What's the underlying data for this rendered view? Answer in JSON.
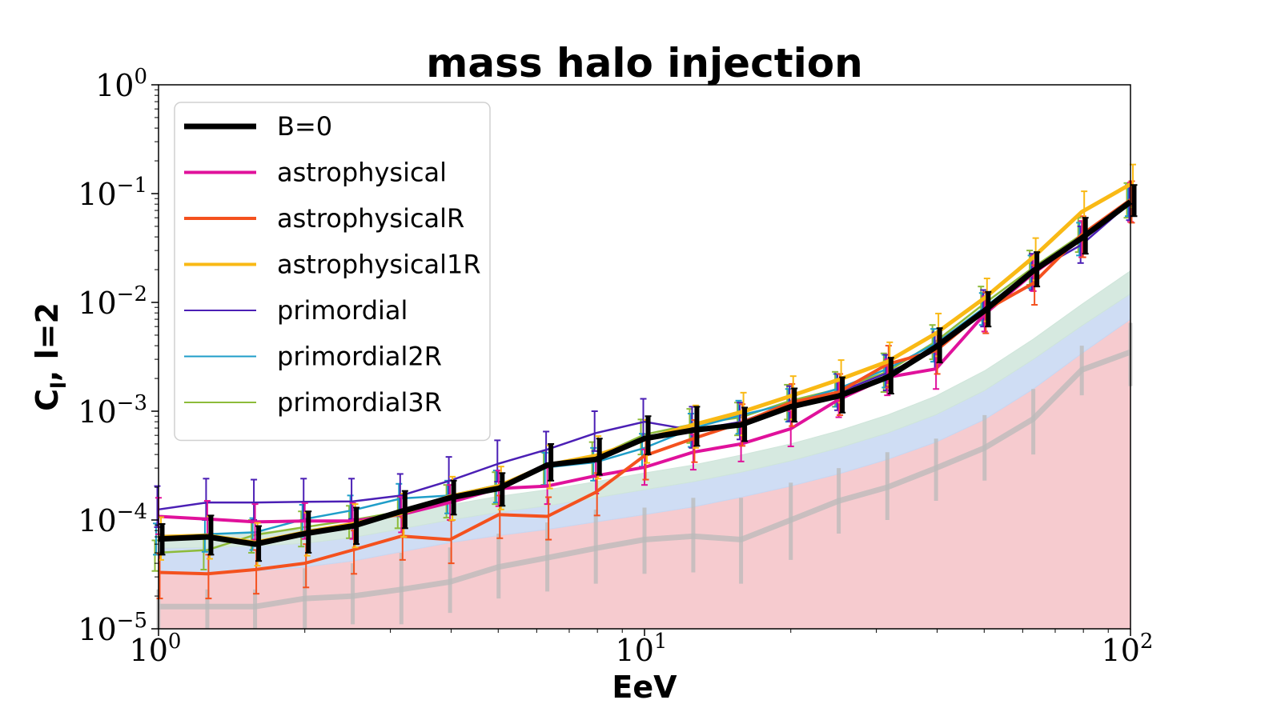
{
  "chart_data": {
    "type": "line",
    "title": "mass halo injection",
    "xlabel": "EeV",
    "ylabel_main": "C",
    "ylabel_sub": "l",
    "ylabel_rest": ", l=2",
    "xscale": "log",
    "yscale": "log",
    "xlim": [
      1,
      100
    ],
    "ylim": [
      1e-05,
      1
    ],
    "legend_position": "upper-left",
    "x_ticks": [
      {
        "value": 1,
        "base": "10",
        "exp": "0"
      },
      {
        "value": 10,
        "base": "10",
        "exp": "1"
      },
      {
        "value": 100,
        "base": "10",
        "exp": "2"
      }
    ],
    "y_ticks": [
      {
        "value": 1e-05,
        "base": "10",
        "exp": "−5"
      },
      {
        "value": 0.0001,
        "base": "10",
        "exp": "−4"
      },
      {
        "value": 0.001,
        "base": "10",
        "exp": "−3"
      },
      {
        "value": 0.01,
        "base": "10",
        "exp": "−2"
      },
      {
        "value": 0.1,
        "base": "10",
        "exp": "−1"
      },
      {
        "value": 1,
        "base": "10",
        "exp": "0"
      }
    ],
    "x": [
      1,
      1.26,
      1.58,
      2.0,
      2.51,
      3.16,
      3.98,
      5.01,
      6.31,
      7.94,
      10.0,
      12.6,
      15.8,
      20.0,
      25.1,
      31.6,
      39.8,
      50.1,
      63.1,
      79.4,
      100
    ],
    "bands": [
      {
        "name": "",
        "color": "#f5c2c7",
        "lower": [
          1e-05,
          1e-05,
          1e-05,
          1e-05,
          1e-05,
          1e-05,
          1e-05,
          1e-05,
          1e-05,
          1e-05,
          1e-05,
          1e-05,
          1e-05,
          1e-05,
          1e-05,
          1e-05,
          1e-05,
          1e-05,
          1e-05,
          1e-05,
          1e-05
        ],
        "upper": [
          3.2e-05,
          3.2e-05,
          3.4e-05,
          3.7e-05,
          4.2e-05,
          5.1e-05,
          6.2e-05,
          7.2e-05,
          8.2e-05,
          9.6e-05,
          0.000112,
          0.000132,
          0.000162,
          0.000205,
          0.000265,
          0.00036,
          0.00052,
          0.00084,
          0.0016,
          0.0034,
          0.007
        ]
      },
      {
        "name": "",
        "color": "#c7d7f2",
        "lower": [
          3.2e-05,
          3.2e-05,
          3.4e-05,
          3.7e-05,
          4.2e-05,
          5.1e-05,
          6.2e-05,
          7.2e-05,
          8.2e-05,
          9.6e-05,
          0.000112,
          0.000132,
          0.000162,
          0.000205,
          0.000265,
          0.00036,
          0.00052,
          0.00084,
          0.0016,
          0.0034,
          0.007
        ],
        "upper": [
          5.5e-05,
          5.6e-05,
          5.8e-05,
          6.1e-05,
          6.9e-05,
          8.3e-05,
          0.0001,
          0.000118,
          0.000135,
          0.00016,
          0.00019,
          0.000225,
          0.000275,
          0.00035,
          0.00046,
          0.00063,
          0.00093,
          0.00155,
          0.003,
          0.0061,
          0.012
        ]
      },
      {
        "name": "",
        "color": "#cfe5da",
        "lower": [
          5.5e-05,
          5.6e-05,
          5.8e-05,
          6.1e-05,
          6.9e-05,
          8.3e-05,
          0.0001,
          0.000118,
          0.000135,
          0.00016,
          0.00019,
          0.000225,
          0.000275,
          0.00035,
          0.00046,
          0.00063,
          0.00093,
          0.00155,
          0.003,
          0.0061,
          0.012
        ],
        "upper": [
          7.2e-05,
          7.4e-05,
          7.7e-05,
          8.2e-05,
          9.2e-05,
          0.000112,
          0.000138,
          0.000165,
          0.00019,
          0.000225,
          0.00027,
          0.00032,
          0.000395,
          0.0005,
          0.00066,
          0.00092,
          0.00138,
          0.00235,
          0.0046,
          0.0096,
          0.0195
        ]
      }
    ],
    "gray_series": {
      "color": "#b9b9b9",
      "values": [
        1.6e-05,
        1.6e-05,
        1.6e-05,
        1.9e-05,
        2e-05,
        2.3e-05,
        2.7e-05,
        3.7e-05,
        4.5e-05,
        5.5e-05,
        6.6e-05,
        7.1e-05,
        6.6e-05,
        0.0001,
        0.00015,
        0.0002,
        0.0003,
        0.00046,
        0.00085,
        0.0024,
        0.0035
      ],
      "err_low": [
        1e-05,
        1e-05,
        1e-05,
        1e-05,
        1.1e-05,
        1.1e-05,
        1.4e-05,
        1.9e-05,
        2.2e-05,
        2.6e-05,
        3.2e-05,
        3.3e-05,
        2.6e-05,
        4.3e-05,
        7.5e-05,
        0.0001,
        0.00015,
        0.00023,
        0.0004,
        0.0014,
        0.0017
      ],
      "err_high": [
        2.3e-05,
        2.3e-05,
        2.3e-05,
        3.6e-05,
        4e-05,
        5e-05,
        5.6e-05,
        7.5e-05,
        9.5e-05,
        0.000125,
        0.00013,
        0.00016,
        0.00016,
        0.00022,
        0.0003,
        0.00042,
        0.00056,
        0.00092,
        0.0016,
        0.004,
        0.0065
      ]
    },
    "series": [
      {
        "name": "primordial3R",
        "color": "#8dbb3a",
        "width": 2.5,
        "values": [
          5e-05,
          5.3e-05,
          7.3e-05,
          8.6e-05,
          0.0001,
          0.00012,
          0.000155,
          0.000205,
          0.00031,
          0.00038,
          0.00061,
          0.00076,
          0.00088,
          0.00125,
          0.0016,
          0.0023,
          0.0044,
          0.0098,
          0.021,
          0.042,
          0.088
        ],
        "err_low": [
          3.4e-05,
          3.5e-05,
          5e-05,
          5.7e-05,
          6.8e-05,
          8.4e-05,
          0.000105,
          0.00014,
          0.00021,
          0.00025,
          0.0004,
          0.00051,
          0.0006,
          0.00084,
          0.0011,
          0.0015,
          0.003,
          0.0068,
          0.0145,
          0.029,
          0.06
        ],
        "err_high": [
          6.5e-05,
          7.2e-05,
          0.0001,
          0.00012,
          0.000135,
          0.000165,
          0.00021,
          0.000275,
          0.00042,
          0.00052,
          0.00084,
          0.00105,
          0.0012,
          0.00175,
          0.0023,
          0.0034,
          0.0062,
          0.014,
          0.03,
          0.06,
          0.125
        ]
      },
      {
        "name": "primordial2R",
        "color": "#1f9ec9",
        "width": 2.5,
        "values": [
          7e-05,
          7.4e-05,
          7.7e-05,
          0.000102,
          0.000123,
          0.000158,
          0.000168,
          0.00021,
          0.000305,
          0.00034,
          0.00046,
          0.0007,
          0.00092,
          0.00118,
          0.00162,
          0.00245,
          0.0042,
          0.009,
          0.02,
          0.039,
          0.09
        ],
        "err_low": [
          4.8e-05,
          5.1e-05,
          5.3e-05,
          7e-05,
          8.5e-05,
          0.000108,
          0.000115,
          0.000145,
          0.00021,
          0.00023,
          0.00031,
          0.00047,
          0.00062,
          0.0008,
          0.0011,
          0.00165,
          0.00285,
          0.0062,
          0.0135,
          0.027,
          0.062
        ],
        "err_high": [
          9.3e-05,
          0.0001,
          0.000104,
          0.000138,
          0.000168,
          0.000215,
          0.00023,
          0.000285,
          0.000415,
          0.00046,
          0.00062,
          0.00095,
          0.00125,
          0.0016,
          0.0022,
          0.0033,
          0.0057,
          0.0122,
          0.027,
          0.054,
          0.12
        ]
      },
      {
        "name": "primordial",
        "color": "#4b1fb5",
        "width": 2.5,
        "values": [
          0.000125,
          0.000145,
          0.000145,
          0.000147,
          0.000148,
          0.000168,
          0.00023,
          0.00033,
          0.000445,
          0.00063,
          0.0008,
          0.00067,
          0.0008,
          0.00118,
          0.0015,
          0.00225,
          0.0036,
          0.0088,
          0.019,
          0.034,
          0.083
        ],
        "err_low": [
          8.6e-05,
          0.0001,
          0.0001,
          0.0001,
          0.000102,
          0.000115,
          0.00016,
          0.000225,
          0.000305,
          0.00043,
          0.00055,
          0.00046,
          0.00055,
          0.00081,
          0.00102,
          0.00155,
          0.00245,
          0.006,
          0.013,
          0.023,
          0.057
        ],
        "err_high": [
          0.000205,
          0.00024,
          0.000235,
          0.00024,
          0.00024,
          0.000265,
          0.00038,
          0.00054,
          0.00065,
          0.001,
          0.0013,
          0.0011,
          0.0012,
          0.0017,
          0.0022,
          0.0033,
          0.0053,
          0.013,
          0.028,
          0.05,
          0.12
        ]
      },
      {
        "name": "astrophysical",
        "color": "#e0119b",
        "width": 4,
        "values": [
          0.000108,
          0.000102,
          9.6e-05,
          9.8e-05,
          9.8e-05,
          0.000112,
          0.000145,
          0.000195,
          0.000205,
          0.000255,
          0.000305,
          0.00042,
          0.0005,
          0.00069,
          0.00128,
          0.00205,
          0.00245,
          0.0078,
          0.0185,
          0.038,
          0.086
        ],
        "err_low": [
          7.4e-05,
          7e-05,
          6.6e-05,
          6.7e-05,
          6.7e-05,
          7.7e-05,
          0.0001,
          0.000134,
          0.00014,
          0.000175,
          0.00021,
          0.00029,
          0.000345,
          0.000475,
          0.00088,
          0.0014,
          0.0016,
          0.0054,
          0.0127,
          0.026,
          0.055
        ],
        "err_high": [
          0.00016,
          0.00015,
          0.00014,
          0.000143,
          0.000143,
          0.000163,
          0.00021,
          0.000285,
          0.0003,
          0.00037,
          0.000445,
          0.00061,
          0.00073,
          0.001,
          0.00186,
          0.003,
          0.0036,
          0.0114,
          0.027,
          0.056,
          0.126
        ]
      },
      {
        "name": "astrophysicalR",
        "color": "#f4511e",
        "width": 4,
        "values": [
          3.3e-05,
          3.2e-05,
          3.5e-05,
          4e-05,
          5.3e-05,
          7.1e-05,
          6.6e-05,
          0.000112,
          0.000108,
          0.00018,
          0.00039,
          0.00056,
          0.00078,
          0.0012,
          0.0015,
          0.0027,
          0.0036,
          0.0084,
          0.015,
          0.042,
          0.088
        ],
        "err_low": [
          1.9e-05,
          1.9e-05,
          2.1e-05,
          2.4e-05,
          3.2e-05,
          4.3e-05,
          4e-05,
          6.8e-05,
          6.6e-05,
          0.00011,
          0.000235,
          0.00034,
          0.00048,
          0.00073,
          0.00092,
          0.00165,
          0.0022,
          0.0052,
          0.0095,
          0.026,
          0.054
        ],
        "err_high": [
          4.9e-05,
          4.8e-05,
          5.3e-05,
          6e-05,
          8e-05,
          0.000106,
          9.9e-05,
          0.000168,
          0.000162,
          0.00027,
          0.00058,
          0.00083,
          0.00116,
          0.00178,
          0.0022,
          0.004,
          0.0053,
          0.0124,
          0.022,
          0.062,
          0.13
        ]
      },
      {
        "name": "astrophysical1R",
        "color": "#f9b915",
        "width": 5,
        "values": [
          7e-05,
          7.2e-05,
          6.2e-05,
          7.7e-05,
          9.2e-05,
          0.000115,
          0.000165,
          0.000205,
          0.00032,
          0.00039,
          0.00055,
          0.00075,
          0.00098,
          0.00138,
          0.00195,
          0.00285,
          0.0052,
          0.011,
          0.026,
          0.068,
          0.122
        ],
        "err_low": [
          4.3e-05,
          4.4e-05,
          3.8e-05,
          4.7e-05,
          5.6e-05,
          7e-05,
          0.0001,
          0.000125,
          0.000195,
          0.00024,
          0.000335,
          0.00046,
          0.0006,
          0.00084,
          0.0012,
          0.00175,
          0.0032,
          0.0067,
          0.016,
          0.041,
          0.075
        ],
        "err_high": [
          0.000106,
          0.000108,
          9.4e-05,
          0.000117,
          0.00014,
          0.000175,
          0.00025,
          0.00031,
          0.000485,
          0.00059,
          0.00083,
          0.00113,
          0.00148,
          0.0021,
          0.00295,
          0.0043,
          0.0079,
          0.0166,
          0.039,
          0.105,
          0.185
        ]
      },
      {
        "name": "B=0",
        "color": "#000000",
        "width": 7,
        "values": [
          6.7e-05,
          7e-05,
          6e-05,
          7.5e-05,
          8.8e-05,
          0.00012,
          0.00016,
          0.000195,
          0.00032,
          0.00036,
          0.00056,
          0.00067,
          0.00075,
          0.0011,
          0.00138,
          0.00205,
          0.0039,
          0.0084,
          0.0195,
          0.039,
          0.084
        ],
        "err_low": [
          4.8e-05,
          4.8e-05,
          4.2e-05,
          5e-05,
          6e-05,
          8.4e-05,
          0.000112,
          0.000135,
          0.00023,
          0.00026,
          0.0004,
          0.00048,
          0.00053,
          0.0008,
          0.00097,
          0.00145,
          0.0028,
          0.006,
          0.014,
          0.028,
          0.062
        ],
        "err_high": [
          9.2e-05,
          0.00011,
          8.8e-05,
          0.00012,
          0.00013,
          0.000185,
          0.00023,
          0.00027,
          0.0005,
          0.00056,
          0.0009,
          0.0011,
          0.00108,
          0.00162,
          0.00205,
          0.0031,
          0.0058,
          0.0125,
          0.029,
          0.06,
          0.12
        ]
      }
    ],
    "legend": [
      {
        "label": "B=0",
        "color": "#000000",
        "width": 7
      },
      {
        "label": "astrophysical",
        "color": "#e0119b",
        "width": 4
      },
      {
        "label": "astrophysicalR",
        "color": "#f4511e",
        "width": 4
      },
      {
        "label": "astrophysical1R",
        "color": "#f9b915",
        "width": 4
      },
      {
        "label": "primordial",
        "color": "#4b1fb5",
        "width": 2
      },
      {
        "label": "primordial2R",
        "color": "#1f9ec9",
        "width": 2
      },
      {
        "label": "primordial3R",
        "color": "#8dbb3a",
        "width": 2
      }
    ]
  }
}
